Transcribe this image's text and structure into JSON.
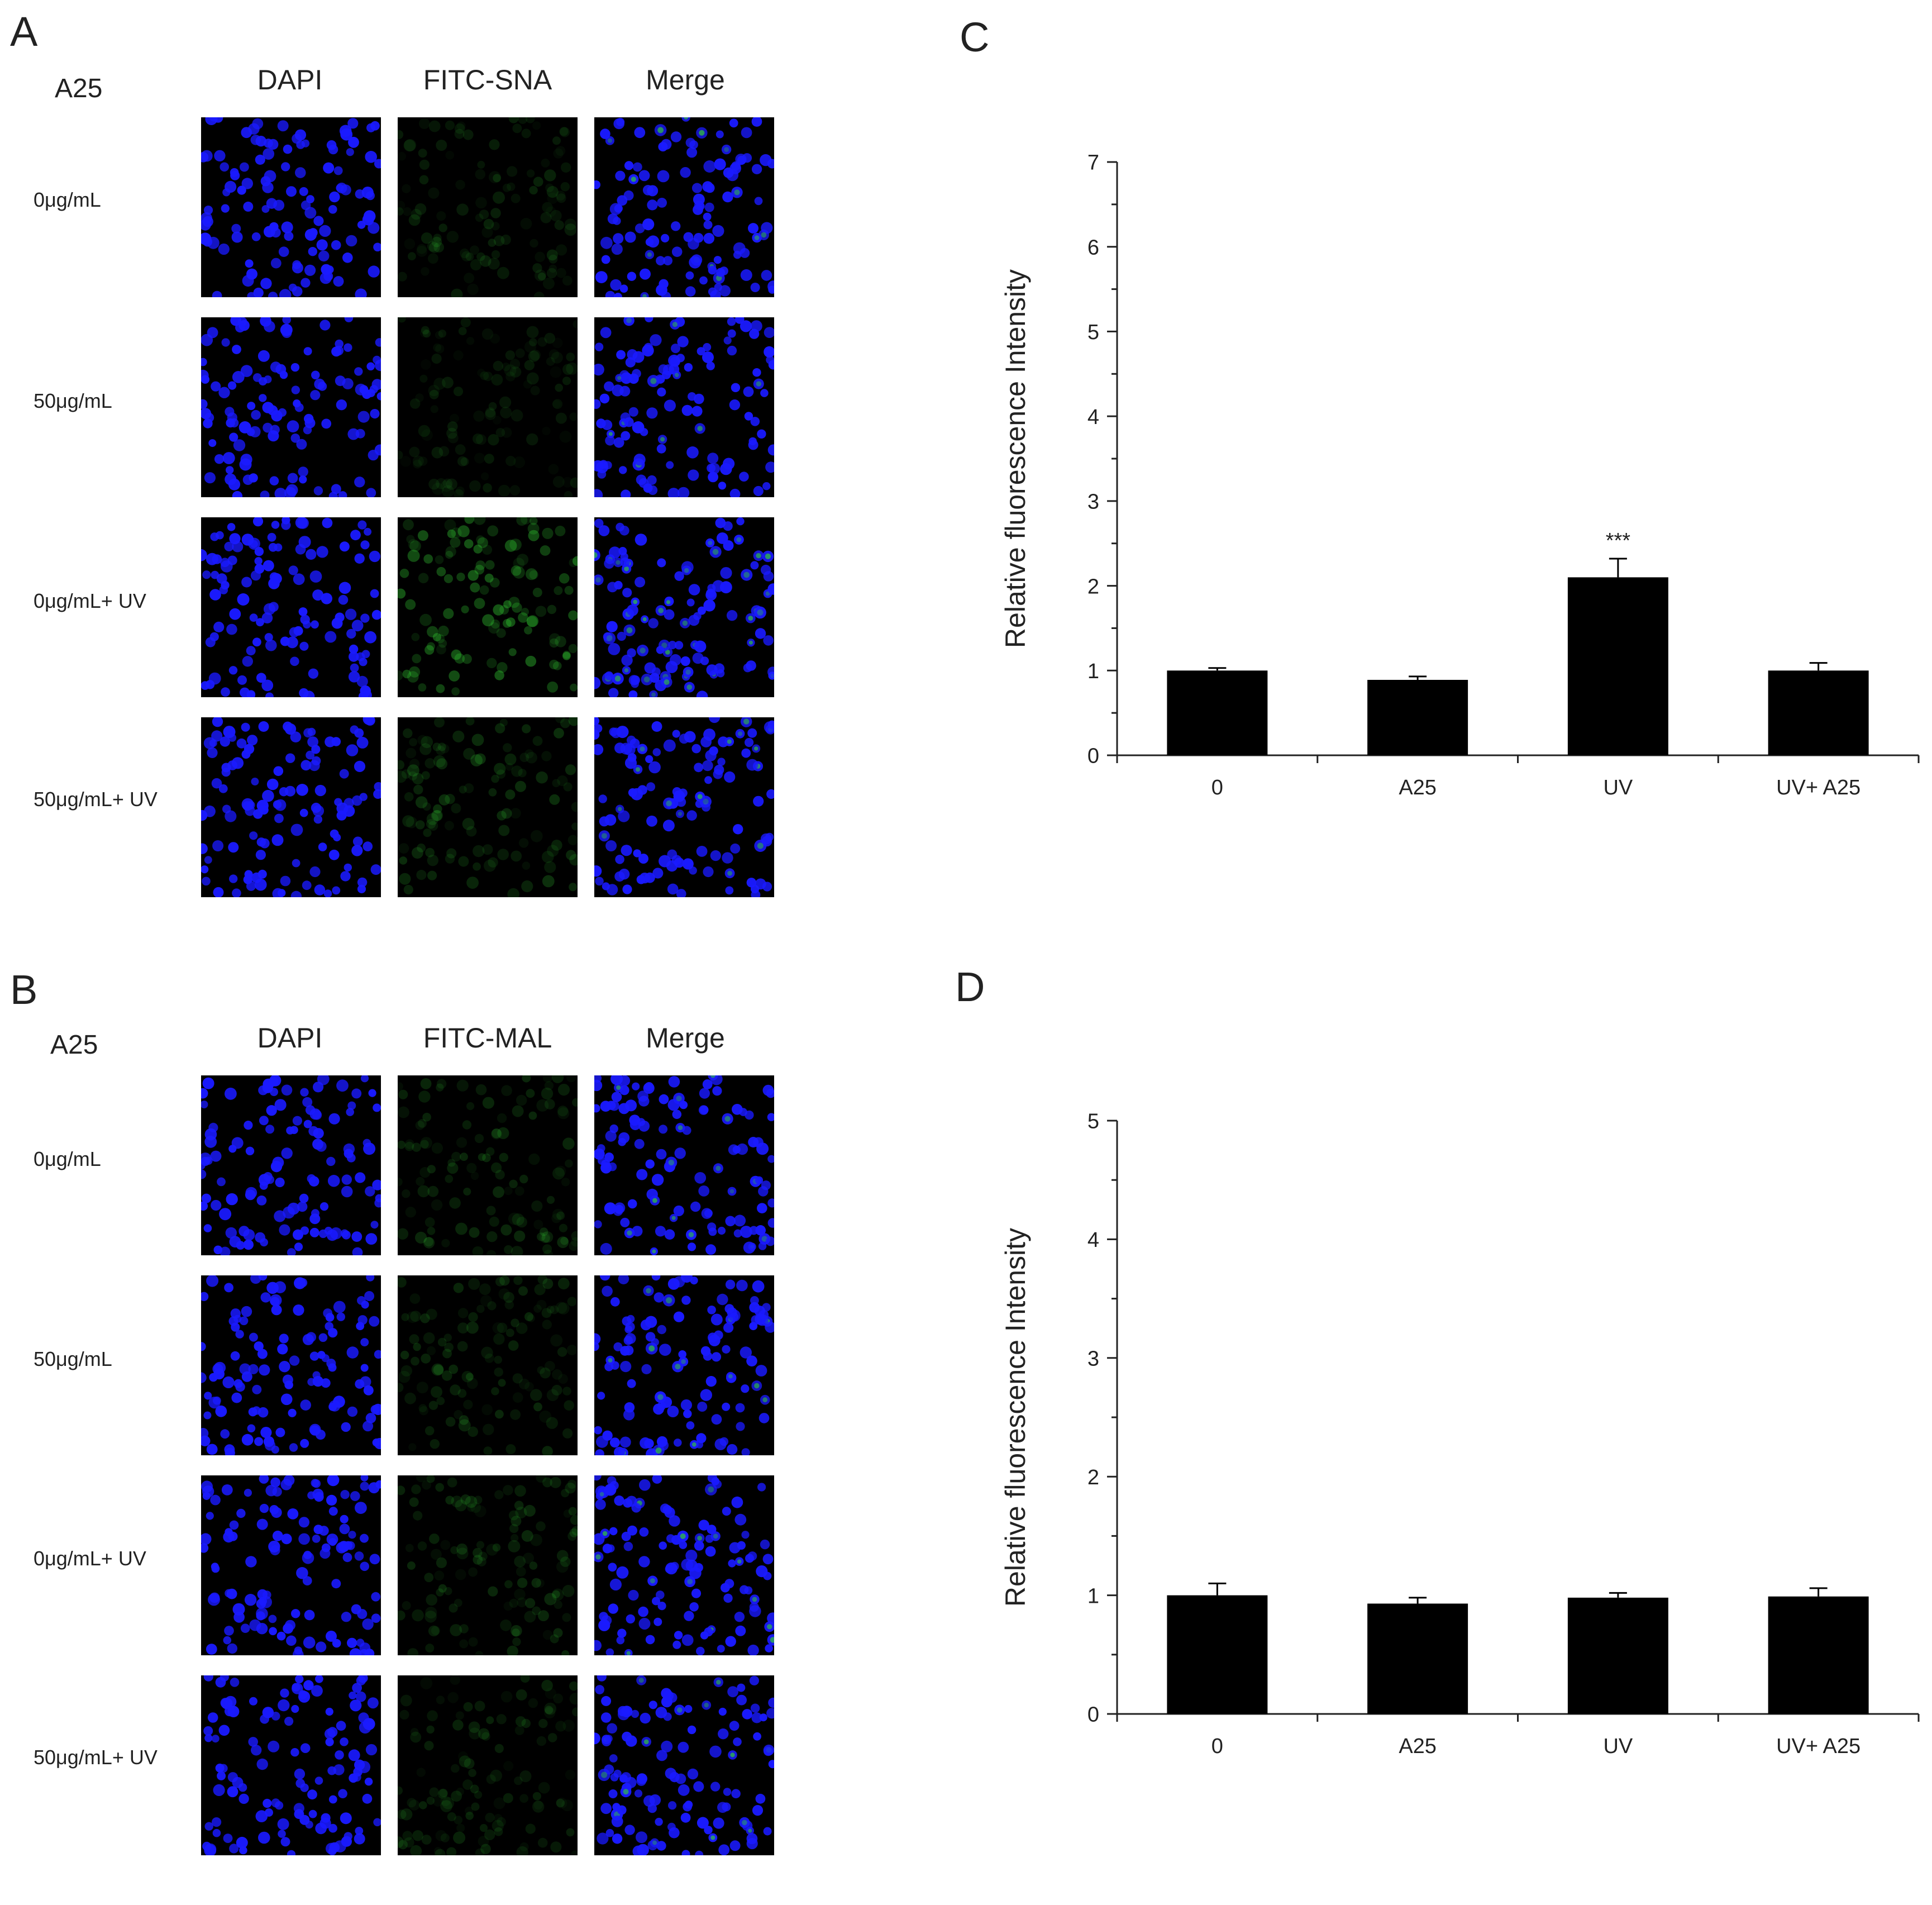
{
  "panels": {
    "A": {
      "letter": "A",
      "group_label": "A25",
      "columns": [
        "DAPI",
        "FITC-SNA",
        "Merge"
      ],
      "rows": [
        "0μg/mL",
        "50μg/mL",
        "0μg/mL+ UV",
        "50μg/mL+ UV"
      ],
      "green_intensity": [
        0.25,
        0.2,
        0.65,
        0.35
      ]
    },
    "B": {
      "letter": "B",
      "group_label": "A25",
      "columns": [
        "DAPI",
        "FITC-MAL",
        "Merge"
      ],
      "rows": [
        "0μg/mL",
        "50μg/mL",
        "0μg/mL+ UV",
        "50μg/mL+ UV"
      ],
      "green_intensity": [
        0.3,
        0.3,
        0.3,
        0.25
      ]
    },
    "C": {
      "letter": "C"
    },
    "D": {
      "letter": "D"
    }
  },
  "colors": {
    "nuclei": "#1a1aff",
    "green": "#33cc33",
    "bar": "#000000",
    "axis": "#222222"
  },
  "chart_data": [
    {
      "panel": "C",
      "type": "bar",
      "categories": [
        "0",
        "A25",
        "UV",
        "UV+ A25"
      ],
      "values": [
        1.0,
        0.89,
        2.1,
        1.0
      ],
      "errors": [
        0.03,
        0.04,
        0.22,
        0.09
      ],
      "annotations": [
        "",
        "",
        "***",
        ""
      ],
      "ylabel": "Relative fluorescence Intensity",
      "ylim": [
        0,
        7
      ],
      "yticks": [
        0,
        1,
        2,
        3,
        4,
        5,
        6,
        7
      ],
      "grid": false
    },
    {
      "panel": "D",
      "type": "bar",
      "categories": [
        "0",
        "A25",
        "UV",
        "UV+ A25"
      ],
      "values": [
        1.0,
        0.93,
        0.98,
        0.99
      ],
      "errors": [
        0.1,
        0.05,
        0.04,
        0.07
      ],
      "annotations": [
        "",
        "",
        "",
        ""
      ],
      "ylabel": "Relative fluorescence Intensity",
      "ylim": [
        0,
        5
      ],
      "yticks": [
        0,
        1,
        2,
        3,
        4,
        5
      ],
      "grid": false
    }
  ]
}
